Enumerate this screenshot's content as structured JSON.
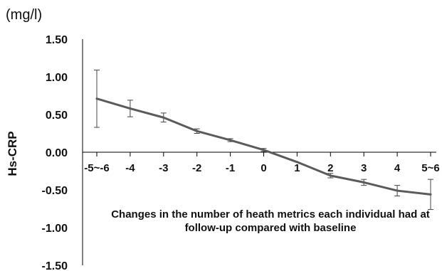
{
  "chart_data": {
    "type": "line",
    "unit_label": "(mg/l)",
    "ylabel": "Hs-CRP",
    "xlabel": "Changes in the number of heath metrics each individual had at follow-up compared with baseline",
    "categories": [
      "-5~-6",
      "-4",
      "-3",
      "-2",
      "-1",
      "0",
      "1",
      "2",
      "3",
      "4",
      "5~6"
    ],
    "y_ticks": [
      "1.50",
      "1.00",
      "0.50",
      "0.00",
      "-0.50",
      "-1.00",
      "-1.50"
    ],
    "ylim": [
      -1.5,
      1.5
    ],
    "series": [
      {
        "values": [
          0.71,
          0.58,
          0.46,
          0.28,
          0.16,
          0.03,
          -0.13,
          -0.31,
          -0.4,
          -0.51,
          -0.56
        ],
        "error_low": [
          0.33,
          0.47,
          0.4,
          0.25,
          0.14,
          0.01,
          null,
          -0.34,
          -0.44,
          -0.58,
          -0.76
        ],
        "error_high": [
          1.09,
          0.69,
          0.52,
          0.31,
          0.18,
          0.05,
          null,
          -0.28,
          -0.36,
          -0.44,
          -0.36
        ]
      }
    ],
    "line_color": "#5b5b5b",
    "grid": false
  }
}
